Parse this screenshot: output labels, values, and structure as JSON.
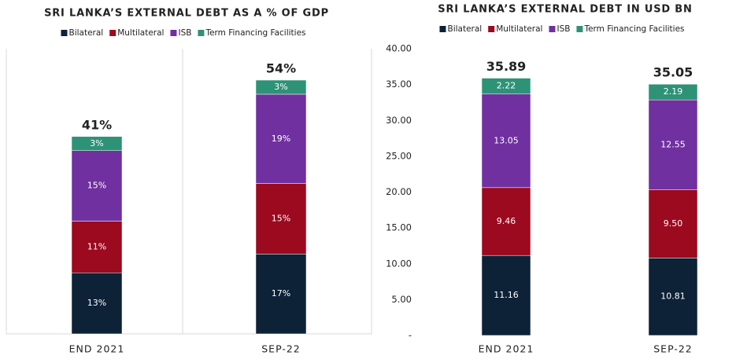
{
  "chart_data": [
    {
      "type": "stacked_bar",
      "title": "SRI LANKA’S EXTERNAL DEBT AS A % OF GDP",
      "categories": [
        "END 2021",
        "SEP-22"
      ],
      "series": [
        {
          "name": "Bilateral",
          "color": "#0d2137",
          "values": [
            13,
            17
          ],
          "value_labels": [
            "13%",
            "17%"
          ]
        },
        {
          "name": "Multilateral",
          "color": "#9b0a1f",
          "values": [
            11,
            15
          ],
          "value_labels": [
            "11%",
            "15%"
          ]
        },
        {
          "name": "ISB",
          "color": "#7030a0",
          "values": [
            15,
            19
          ],
          "value_labels": [
            "15%",
            "19%"
          ]
        },
        {
          "name": "Term Financing Facilities",
          "color": "#2e9277",
          "values": [
            3,
            3
          ],
          "value_labels": [
            "3%",
            "3%"
          ]
        }
      ],
      "totals": [
        41,
        54
      ],
      "total_labels": [
        "41%",
        "54%"
      ]
    },
    {
      "type": "stacked_bar",
      "title": "SRI LANKA’S EXTERNAL DEBT IN USD BN",
      "categories": [
        "END 2021",
        "SEP-22"
      ],
      "series": [
        {
          "name": "Bilateral",
          "color": "#0d2137",
          "values": [
            11.16,
            10.81
          ]
        },
        {
          "name": "Multilateral",
          "color": "#9b0a1f",
          "values": [
            9.46,
            9.5
          ],
          "value_labels": [
            "9.46",
            "9.50"
          ]
        },
        {
          "name": "ISB",
          "color": "#7030a0",
          "values": [
            13.05,
            12.55
          ]
        },
        {
          "name": "Term Financing Facilities",
          "color": "#2e9277",
          "values": [
            2.22,
            2.19
          ]
        }
      ],
      "totals": [
        35.89,
        35.05
      ],
      "ylim": [
        0,
        40
      ],
      "yticks": [
        {
          "value": 0,
          "label": "-"
        },
        {
          "value": 5,
          "label": "5.00"
        },
        {
          "value": 10,
          "label": "10.00"
        },
        {
          "value": 15,
          "label": "15.00"
        },
        {
          "value": 20,
          "label": "20.00"
        },
        {
          "value": 25,
          "label": "25.00"
        },
        {
          "value": 30,
          "label": "30.00"
        },
        {
          "value": 35,
          "label": "35.00"
        },
        {
          "value": 40,
          "label": "40.00"
        }
      ]
    }
  ]
}
